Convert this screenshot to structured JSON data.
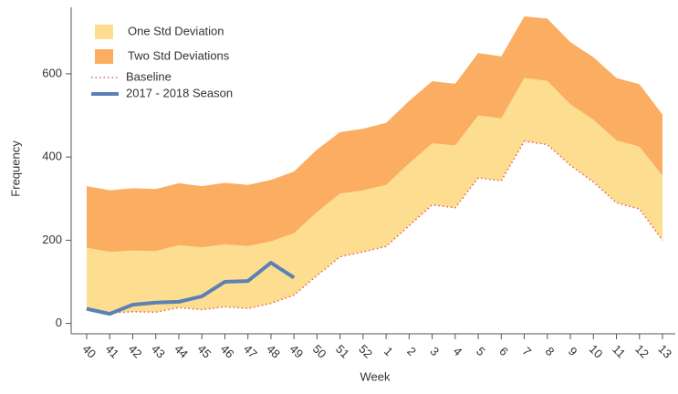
{
  "chart_data": {
    "type": "area",
    "x_label": "Week",
    "y_label": "Frequency",
    "categories": [
      "40",
      "41",
      "42",
      "43",
      "44",
      "45",
      "46",
      "47",
      "48",
      "49",
      "50",
      "51",
      "52",
      "1",
      "2",
      "3",
      "4",
      "5",
      "6",
      "7",
      "8",
      "9",
      "10",
      "11",
      "12",
      "13"
    ],
    "series": [
      {
        "name": "One Std Deviation",
        "kind": "band",
        "color": "#fddd8f",
        "values": [
          182,
          172,
          175,
          174,
          188,
          183,
          190,
          186,
          197,
          217,
          268,
          312,
          320,
          333,
          385,
          433,
          428,
          500,
          493,
          590,
          583,
          527,
          490,
          440,
          425,
          355
        ]
      },
      {
        "name": "Two Std Deviations",
        "kind": "band",
        "color": "#fbad61",
        "values": [
          330,
          320,
          325,
          323,
          337,
          330,
          338,
          333,
          345,
          365,
          418,
          460,
          468,
          482,
          535,
          582,
          576,
          650,
          642,
          738,
          733,
          676,
          640,
          590,
          575,
          502
        ]
      },
      {
        "name": "Baseline",
        "kind": "dotted",
        "color": "#e0605a",
        "values": [
          35,
          25,
          28,
          27,
          38,
          33,
          40,
          36,
          48,
          68,
          115,
          160,
          172,
          185,
          235,
          285,
          278,
          350,
          343,
          438,
          430,
          380,
          340,
          290,
          275,
          200
        ]
      },
      {
        "name": "2017 - 2018 Season",
        "kind": "line",
        "color": "#5b80b5",
        "values": [
          35,
          23,
          45,
          50,
          52,
          65,
          100,
          102,
          146,
          110,
          null,
          null,
          null,
          null,
          null,
          null,
          null,
          null,
          null,
          null,
          null,
          null,
          null,
          null,
          null,
          null
        ]
      }
    ],
    "ylim": [
      -25,
      760
    ],
    "yticks": [
      0,
      200,
      400,
      600
    ],
    "grid": false
  }
}
